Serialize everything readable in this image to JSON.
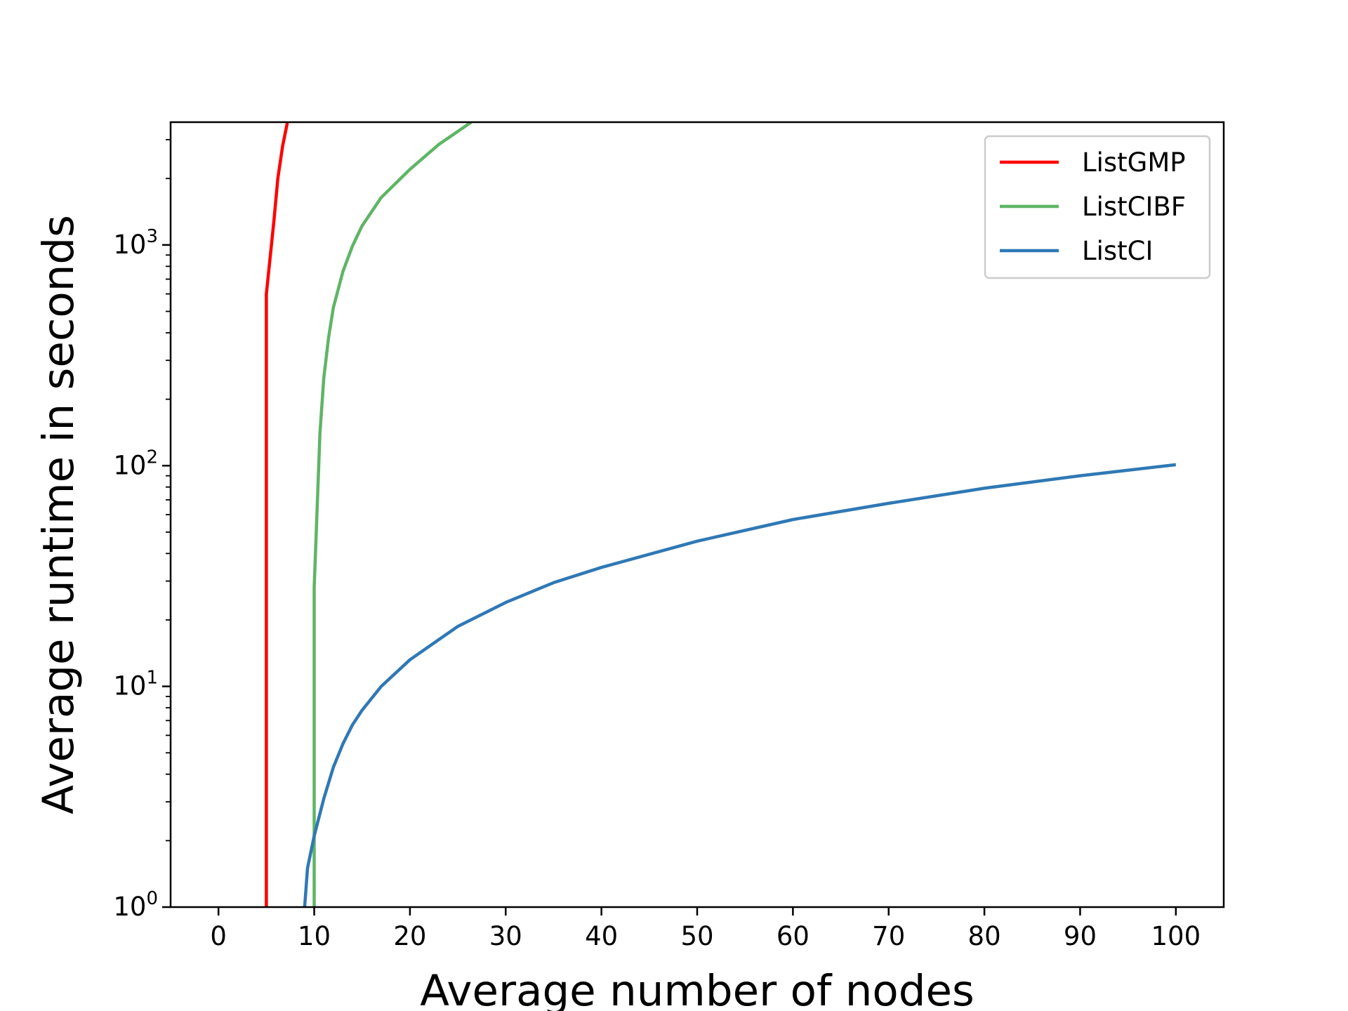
{
  "chart_data": {
    "type": "line",
    "title": "",
    "xlabel": "Average number of nodes",
    "ylabel": "Average runtime in seconds",
    "xscale": "linear",
    "yscale": "log",
    "xlim": [
      -5,
      105
    ],
    "ylim": [
      1,
      3600
    ],
    "xticks": [
      0,
      10,
      20,
      30,
      40,
      50,
      60,
      70,
      80,
      90,
      100
    ],
    "xtick_labels": [
      "0",
      "10",
      "20",
      "30",
      "40",
      "50",
      "60",
      "70",
      "80",
      "90",
      "100"
    ],
    "yticks": [
      {
        "value": 1,
        "base": "10",
        "exp": "0"
      },
      {
        "value": 10,
        "base": "10",
        "exp": "1"
      },
      {
        "value": 100,
        "base": "10",
        "exp": "2"
      },
      {
        "value": 1000,
        "base": "10",
        "exp": "3"
      }
    ],
    "grid": false,
    "legend_position": "top-right",
    "series": [
      {
        "name": "ListGMP",
        "color": "#ff0000",
        "x": [
          5,
          5,
          5.8,
          6.2,
          6.7,
          7.2
        ],
        "y": [
          1,
          600,
          1300,
          2000,
          2800,
          3600
        ]
      },
      {
        "name": "ListCIBF",
        "color": "#5fb565",
        "x": [
          10,
          10,
          10.6,
          11,
          11.5,
          12,
          13,
          14,
          15,
          17,
          20,
          23,
          26.4
        ],
        "y": [
          1,
          28,
          140,
          250,
          380,
          520,
          760,
          990,
          1220,
          1640,
          2200,
          2850,
          3600
        ]
      },
      {
        "name": "ListCI",
        "color": "#2f78b5",
        "x": [
          9,
          9.3,
          10,
          11,
          12,
          13,
          14,
          15,
          17,
          20,
          25,
          30,
          35,
          40,
          50,
          60,
          70,
          80,
          90,
          100
        ],
        "y": [
          1,
          1.5,
          2.1,
          3.1,
          4.3,
          5.5,
          6.7,
          7.8,
          10,
          13.2,
          18.7,
          24,
          29.5,
          34.6,
          45.5,
          57,
          67.5,
          79,
          90,
          101
        ]
      }
    ]
  }
}
